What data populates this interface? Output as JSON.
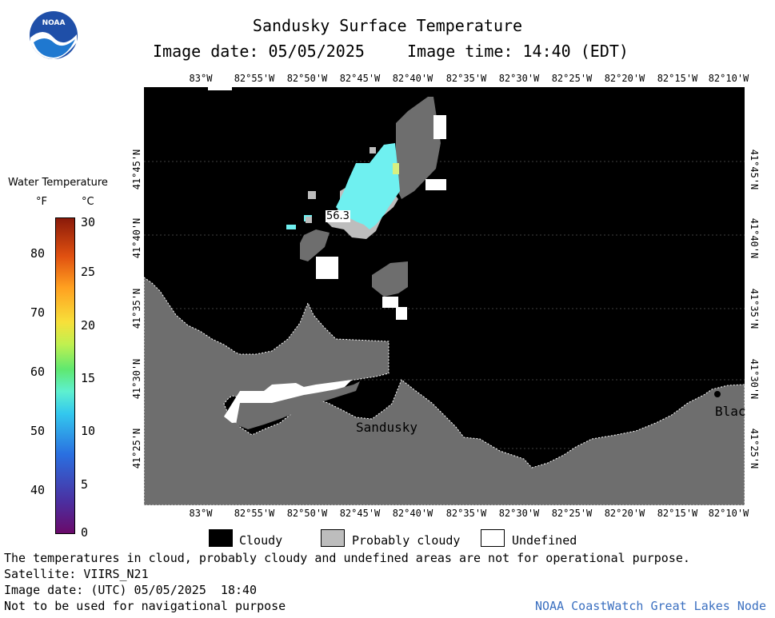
{
  "header": {
    "title": "Sandusky Surface Temperature",
    "image_date": "Image date: 05/05/2025",
    "image_time": "Image time: 14:40 (EDT)",
    "logo_text": "NOAA"
  },
  "colorbar": {
    "title": "Water Temperature",
    "unit_f": "°F",
    "unit_c": "°C",
    "f_ticks": [
      "80",
      "70",
      "60",
      "50",
      "40"
    ],
    "c_ticks": [
      "30",
      "25",
      "20",
      "15",
      "10",
      "5",
      "0"
    ]
  },
  "map": {
    "lon_labels": [
      "83°W",
      "82°55'W",
      "82°50'W",
      "82°45'W",
      "82°40'W",
      "82°35'W",
      "82°30'W",
      "82°25'W",
      "82°20'W",
      "82°15'W",
      "82°10'W"
    ],
    "lat_labels": [
      "41°45'N",
      "41°40'N",
      "41°35'N",
      "41°30'N",
      "41°25'N"
    ],
    "temp_label": "56.3",
    "place_sandusky": "Sandusky",
    "place_blac": "Blac"
  },
  "legend": {
    "cloudy": "Cloudy",
    "probably_cloudy": "Probably cloudy",
    "undefined": "Undefined"
  },
  "footer": {
    "disclaimer": "The temperatures in cloud, probably cloudy and undefined areas are not for operational purpose.",
    "satellite": "Satellite: VIIRS_N21",
    "utc_date": "Image date: (UTC) 05/05/2025  18:40",
    "nav_warning": "Not to be used for navigational purpose",
    "credit": "NOAA CoastWatch Great Lakes Node"
  },
  "colors": {
    "cloudy": "#000000",
    "probably_cloudy": "#bdbdbd",
    "land": "#6e6e6e",
    "undefined": "#ffffff",
    "water_cyan": "#6ff0f0",
    "credit": "#3a6fc0"
  }
}
